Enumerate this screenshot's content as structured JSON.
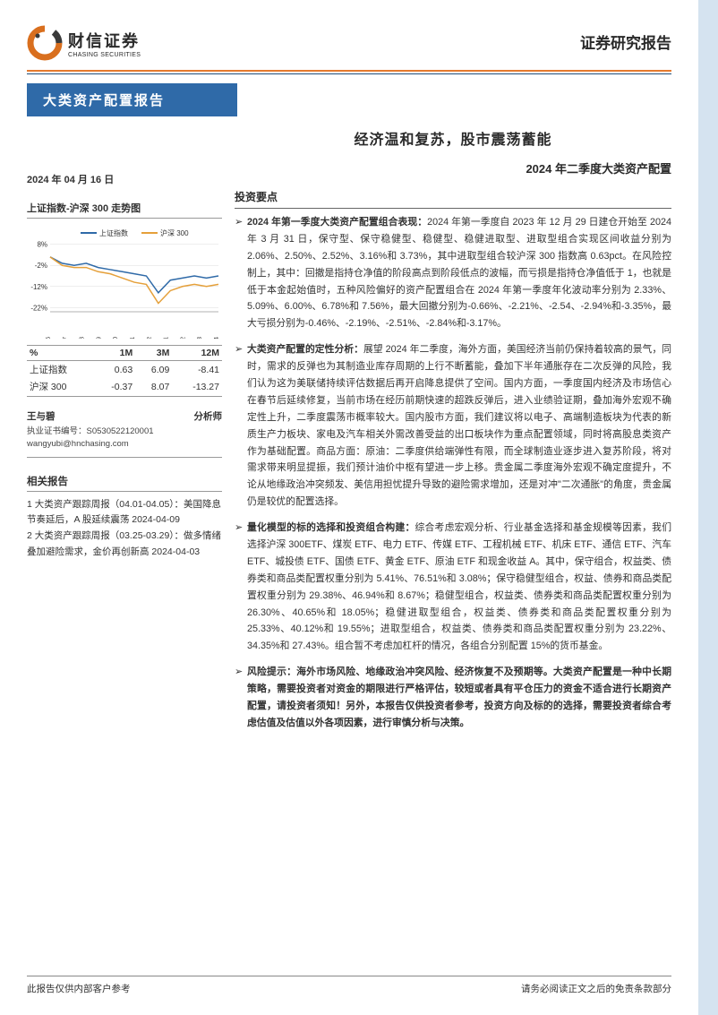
{
  "header": {
    "company_cn": "财信证券",
    "company_en": "CHASING SECURITIES",
    "report_type": "证券研究报告",
    "category": "大类资产配置报告",
    "logo_colors": {
      "accent": "#d96f1e",
      "dark": "#3a3a3a"
    }
  },
  "colors": {
    "orange_rule": "#e57a2e",
    "blue_rule": "#1f4e79",
    "blue_bar": "#2f6aa8",
    "right_strip": "#d5e3f0",
    "text": "#333333"
  },
  "main": {
    "title": "经济温和复苏，股市震荡蓄能",
    "subtitle": "2024 年二季度大类资产配置",
    "section_label": "投资要点"
  },
  "left": {
    "date": "2024 年 04 月 16 日",
    "chart": {
      "title": "上证指数-沪深 300 走势图",
      "type": "line",
      "legend": [
        "上证指数",
        "沪深 300"
      ],
      "x_labels": [
        "2023-06",
        "2023-07",
        "2023-08",
        "2023-09",
        "2023-10",
        "2023-11",
        "2023-12",
        "2024-01",
        "2024-02",
        "2024-03",
        "2024-04"
      ],
      "y_ticks": [
        -22,
        -12,
        -2,
        8
      ],
      "y_suffix": "%",
      "ylim": [
        -24,
        10
      ],
      "series": [
        {
          "name": "上证指数",
          "color": "#2f6aa8",
          "values": [
            2,
            -1,
            -2,
            -1,
            -3,
            -4,
            -5,
            -6,
            -7,
            -15,
            -9,
            -8,
            -7,
            -8,
            -7
          ]
        },
        {
          "name": "沪深 300",
          "color": "#e5a03a",
          "values": [
            2,
            -2,
            -3,
            -3,
            -5,
            -6,
            -8,
            -10,
            -11,
            -20,
            -14,
            -12,
            -11,
            -12,
            -11
          ]
        }
      ],
      "background": "#ffffff",
      "grid_color": "#dddddd",
      "label_fontsize": 8
    },
    "perf_table": {
      "columns": [
        "%",
        "1M",
        "3M",
        "12M"
      ],
      "rows": [
        [
          "上证指数",
          "0.63",
          "6.09",
          "-8.41"
        ],
        [
          "沪深 300",
          "-0.37",
          "8.07",
          "-13.27"
        ]
      ]
    },
    "analyst": {
      "name": "王与碧",
      "role": "分析师",
      "license_label": "执业证书编号：",
      "license": "S0530522120001",
      "email": "wangyubi@hnchasing.com"
    },
    "related": {
      "title": "相关报告",
      "items": [
        "1 大类资产跟踪周报（04.01-04.05）：美国降息节奏延后，A 股延续震荡 2024-04-09",
        "2 大类资产跟踪周报（03.25-03.29）：做多情绪叠加避险需求，金价再创新高 2024-04-03"
      ]
    }
  },
  "bullets": [
    {
      "lead": "2024 年第一季度大类资产配置组合表现：",
      "text": "2024 年第一季度自 2023 年 12 月 29 日建仓开始至 2024 年 3 月 31 日，保守型、保守稳健型、稳健型、稳健进取型、进取型组合实现区间收益分别为 2.06%、2.50%、2.52%、3.16%和 3.73%，其中进取型组合较沪深 300 指数高 0.63pct。在风险控制上，其中：回撤是指持仓净值的阶段高点到阶段低点的波幅，而亏损是指持仓净值低于 1，也就是低于本金起始值时，五种风险偏好的资产配置组合在 2024 年第一季度年化波动率分别为 2.33%、5.09%、6.00%、6.78%和 7.56%，最大回撤分别为-0.66%、-2.21%、-2.54、-2.94%和-3.35%，最大亏损分别为-0.46%、-2.19%、-2.51%、-2.84%和-3.17%。"
    },
    {
      "lead": "大类资产配置的定性分析：",
      "text": "展望 2024 年二季度，海外方面，美国经济当前仍保持着较高的景气，同时，需求的反弹也为其制造业库存周期的上行不断蓄能，叠加下半年通胀存在二次反弹的风险，我们认为这为美联储持续评估数据后再开启降息提供了空间。国内方面，一季度国内经济及市场信心在春节后延续修复，当前市场在经历前期快速的超跌反弹后，进入业绩验证期，叠加海外宏观不确定性上升，二季度震荡市概率较大。国内股市方面，我们建议将以电子、高端制造板块为代表的新质生产力板块、家电及汽车相关外需改善受益的出口板块作为重点配置领域，同时将高股息类资产作为基础配置。商品方面：原油：二季度供给端弹性有限，而全球制造业逐步进入复苏阶段，将对需求带来明显提振，我们预计油价中枢有望进一步上移。贵金属二季度海外宏观不确定度提升，不论从地缘政治冲突频发、美信用担忧提升导致的避险需求增加，还是对冲\"二次通胀\"的角度，贵金属仍是较优的配置选择。"
    },
    {
      "lead": "量化模型的标的选择和投资组合构建：",
      "text": "综合考虑宏观分析、行业基金选择和基金规模等因素，我们选择沪深 300ETF、煤炭 ETF、电力 ETF、传媒 ETF、工程机械 ETF、机床 ETF、通信 ETF、汽车 ETF、城投债 ETF、国债 ETF、黄金 ETF、原油 ETF 和现金收益 A。其中，保守组合，权益类、债券类和商品类配置权重分别为 5.41%、76.51%和 3.08%；保守稳健型组合，权益、债券和商品类配置权重分别为 29.38%、46.94%和 8.67%；稳健型组合，权益类、债券类和商品类配置权重分别为 26.30%、40.65%和 18.05%；稳健进取型组合，权益类、债券类和商品类配置权重分别为 25.33%、40.12%和 19.55%；进取型组合，权益类、债券类和商品类配置权重分别为 23.22%、34.35%和 27.43%。组合暂不考虑加杠杆的情况，各组合分别配置 15%的货币基金。"
    },
    {
      "lead": "风险提示：",
      "text": "海外市场风险、地缘政治冲突风险、经济恢复不及预期等。大类资产配置是一种中长期策略，需要投资者对资金的期限进行严格评估，较短或者具有平仓压力的资金不适合进行长期资产配置，请投资者须知！另外，本报告仅供投资者参考，投资方向及标的的选择，需要投资者综合考虑估值及估值以外各项因素，进行审慎分析与决策。",
      "lead_bold_all": true
    }
  ],
  "footer": {
    "left": "此报告仅供内部客户参考",
    "right": "请务必阅读正文之后的免责条款部分"
  }
}
